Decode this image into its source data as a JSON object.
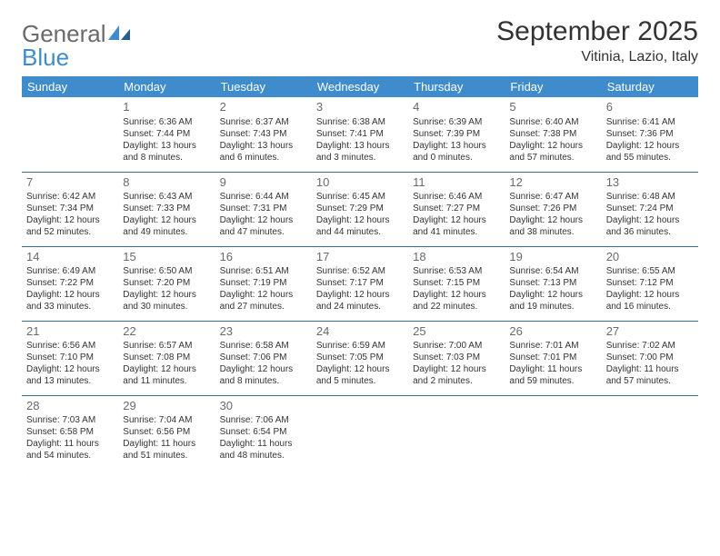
{
  "logo": {
    "word1": "General",
    "word2": "Blue"
  },
  "title": "September 2025",
  "subtitle": "Vitinia, Lazio, Italy",
  "colors": {
    "header_bg": "#3e8ccc",
    "header_text": "#ffffff",
    "row_border": "#3e6b8c",
    "daynum": "#6a6a6a",
    "body_text": "#333333",
    "logo_gray": "#6a6a6a",
    "logo_blue": "#3e8ccc",
    "page_bg": "#ffffff"
  },
  "weekdays": [
    "Sunday",
    "Monday",
    "Tuesday",
    "Wednesday",
    "Thursday",
    "Friday",
    "Saturday"
  ],
  "days": {
    "1": {
      "sunrise": "Sunrise: 6:36 AM",
      "sunset": "Sunset: 7:44 PM",
      "day1": "Daylight: 13 hours",
      "day2": "and 8 minutes."
    },
    "2": {
      "sunrise": "Sunrise: 6:37 AM",
      "sunset": "Sunset: 7:43 PM",
      "day1": "Daylight: 13 hours",
      "day2": "and 6 minutes."
    },
    "3": {
      "sunrise": "Sunrise: 6:38 AM",
      "sunset": "Sunset: 7:41 PM",
      "day1": "Daylight: 13 hours",
      "day2": "and 3 minutes."
    },
    "4": {
      "sunrise": "Sunrise: 6:39 AM",
      "sunset": "Sunset: 7:39 PM",
      "day1": "Daylight: 13 hours",
      "day2": "and 0 minutes."
    },
    "5": {
      "sunrise": "Sunrise: 6:40 AM",
      "sunset": "Sunset: 7:38 PM",
      "day1": "Daylight: 12 hours",
      "day2": "and 57 minutes."
    },
    "6": {
      "sunrise": "Sunrise: 6:41 AM",
      "sunset": "Sunset: 7:36 PM",
      "day1": "Daylight: 12 hours",
      "day2": "and 55 minutes."
    },
    "7": {
      "sunrise": "Sunrise: 6:42 AM",
      "sunset": "Sunset: 7:34 PM",
      "day1": "Daylight: 12 hours",
      "day2": "and 52 minutes."
    },
    "8": {
      "sunrise": "Sunrise: 6:43 AM",
      "sunset": "Sunset: 7:33 PM",
      "day1": "Daylight: 12 hours",
      "day2": "and 49 minutes."
    },
    "9": {
      "sunrise": "Sunrise: 6:44 AM",
      "sunset": "Sunset: 7:31 PM",
      "day1": "Daylight: 12 hours",
      "day2": "and 47 minutes."
    },
    "10": {
      "sunrise": "Sunrise: 6:45 AM",
      "sunset": "Sunset: 7:29 PM",
      "day1": "Daylight: 12 hours",
      "day2": "and 44 minutes."
    },
    "11": {
      "sunrise": "Sunrise: 6:46 AM",
      "sunset": "Sunset: 7:27 PM",
      "day1": "Daylight: 12 hours",
      "day2": "and 41 minutes."
    },
    "12": {
      "sunrise": "Sunrise: 6:47 AM",
      "sunset": "Sunset: 7:26 PM",
      "day1": "Daylight: 12 hours",
      "day2": "and 38 minutes."
    },
    "13": {
      "sunrise": "Sunrise: 6:48 AM",
      "sunset": "Sunset: 7:24 PM",
      "day1": "Daylight: 12 hours",
      "day2": "and 36 minutes."
    },
    "14": {
      "sunrise": "Sunrise: 6:49 AM",
      "sunset": "Sunset: 7:22 PM",
      "day1": "Daylight: 12 hours",
      "day2": "and 33 minutes."
    },
    "15": {
      "sunrise": "Sunrise: 6:50 AM",
      "sunset": "Sunset: 7:20 PM",
      "day1": "Daylight: 12 hours",
      "day2": "and 30 minutes."
    },
    "16": {
      "sunrise": "Sunrise: 6:51 AM",
      "sunset": "Sunset: 7:19 PM",
      "day1": "Daylight: 12 hours",
      "day2": "and 27 minutes."
    },
    "17": {
      "sunrise": "Sunrise: 6:52 AM",
      "sunset": "Sunset: 7:17 PM",
      "day1": "Daylight: 12 hours",
      "day2": "and 24 minutes."
    },
    "18": {
      "sunrise": "Sunrise: 6:53 AM",
      "sunset": "Sunset: 7:15 PM",
      "day1": "Daylight: 12 hours",
      "day2": "and 22 minutes."
    },
    "19": {
      "sunrise": "Sunrise: 6:54 AM",
      "sunset": "Sunset: 7:13 PM",
      "day1": "Daylight: 12 hours",
      "day2": "and 19 minutes."
    },
    "20": {
      "sunrise": "Sunrise: 6:55 AM",
      "sunset": "Sunset: 7:12 PM",
      "day1": "Daylight: 12 hours",
      "day2": "and 16 minutes."
    },
    "21": {
      "sunrise": "Sunrise: 6:56 AM",
      "sunset": "Sunset: 7:10 PM",
      "day1": "Daylight: 12 hours",
      "day2": "and 13 minutes."
    },
    "22": {
      "sunrise": "Sunrise: 6:57 AM",
      "sunset": "Sunset: 7:08 PM",
      "day1": "Daylight: 12 hours",
      "day2": "and 11 minutes."
    },
    "23": {
      "sunrise": "Sunrise: 6:58 AM",
      "sunset": "Sunset: 7:06 PM",
      "day1": "Daylight: 12 hours",
      "day2": "and 8 minutes."
    },
    "24": {
      "sunrise": "Sunrise: 6:59 AM",
      "sunset": "Sunset: 7:05 PM",
      "day1": "Daylight: 12 hours",
      "day2": "and 5 minutes."
    },
    "25": {
      "sunrise": "Sunrise: 7:00 AM",
      "sunset": "Sunset: 7:03 PM",
      "day1": "Daylight: 12 hours",
      "day2": "and 2 minutes."
    },
    "26": {
      "sunrise": "Sunrise: 7:01 AM",
      "sunset": "Sunset: 7:01 PM",
      "day1": "Daylight: 11 hours",
      "day2": "and 59 minutes."
    },
    "27": {
      "sunrise": "Sunrise: 7:02 AM",
      "sunset": "Sunset: 7:00 PM",
      "day1": "Daylight: 11 hours",
      "day2": "and 57 minutes."
    },
    "28": {
      "sunrise": "Sunrise: 7:03 AM",
      "sunset": "Sunset: 6:58 PM",
      "day1": "Daylight: 11 hours",
      "day2": "and 54 minutes."
    },
    "29": {
      "sunrise": "Sunrise: 7:04 AM",
      "sunset": "Sunset: 6:56 PM",
      "day1": "Daylight: 11 hours",
      "day2": "and 51 minutes."
    },
    "30": {
      "sunrise": "Sunrise: 7:06 AM",
      "sunset": "Sunset: 6:54 PM",
      "day1": "Daylight: 11 hours",
      "day2": "and 48 minutes."
    }
  },
  "grid": [
    [
      null,
      1,
      2,
      3,
      4,
      5,
      6
    ],
    [
      7,
      8,
      9,
      10,
      11,
      12,
      13
    ],
    [
      14,
      15,
      16,
      17,
      18,
      19,
      20
    ],
    [
      21,
      22,
      23,
      24,
      25,
      26,
      27
    ],
    [
      28,
      29,
      30,
      null,
      null,
      null,
      null
    ]
  ]
}
